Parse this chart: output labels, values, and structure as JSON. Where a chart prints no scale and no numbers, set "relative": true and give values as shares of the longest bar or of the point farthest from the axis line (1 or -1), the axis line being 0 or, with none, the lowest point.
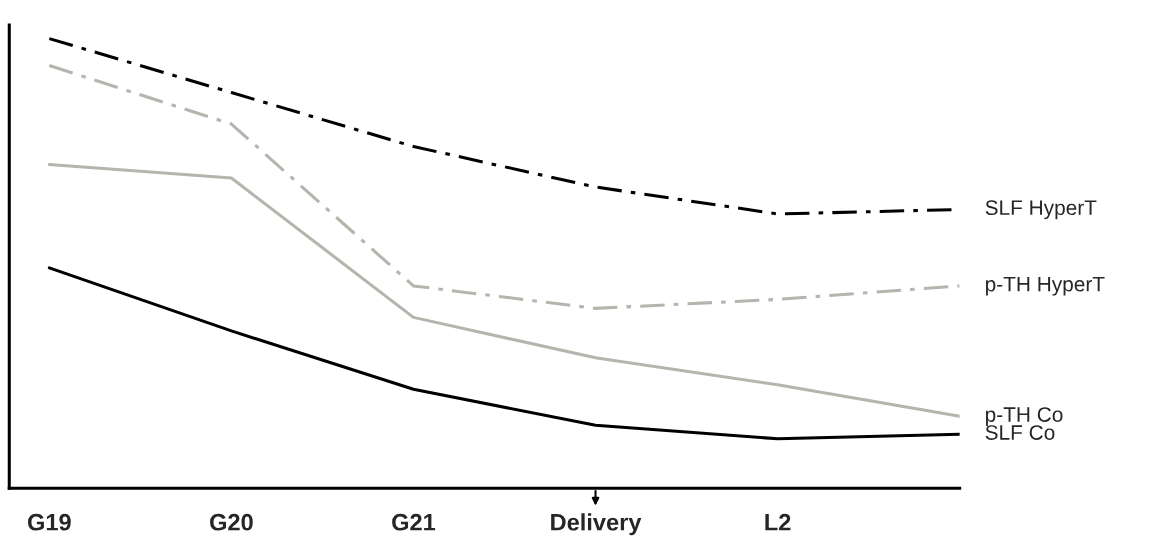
{
  "chart_data": {
    "type": "line",
    "relative": true,
    "categories": [
      "G19",
      "G20",
      "G21",
      "Delivery",
      "L2",
      null
    ],
    "series": [
      {
        "name": "SLF HyperT",
        "color": "#000000",
        "line_style": "dashed",
        "values": [
          1,
          0.88,
          0.76,
          0.67,
          0.61,
          0.62
        ]
      },
      {
        "name": "p-TH HyperT",
        "color": "#b5b5ad",
        "line_style": "dashed",
        "values": [
          0.94,
          0.81,
          0.45,
          0.4,
          0.42,
          0.45
        ]
      },
      {
        "name": "p-TH Co",
        "color": "#b5b5ad",
        "line_style": "solid",
        "values": [
          0.72,
          0.69,
          0.38,
          0.29,
          0.23,
          0.16
        ]
      },
      {
        "name": "SLF Co",
        "color": "#000000",
        "line_style": "solid",
        "values": [
          0.49,
          0.35,
          0.22,
          0.14,
          0.11,
          0.12
        ]
      }
    ],
    "grid": false,
    "legend": false,
    "marker": "none"
  }
}
